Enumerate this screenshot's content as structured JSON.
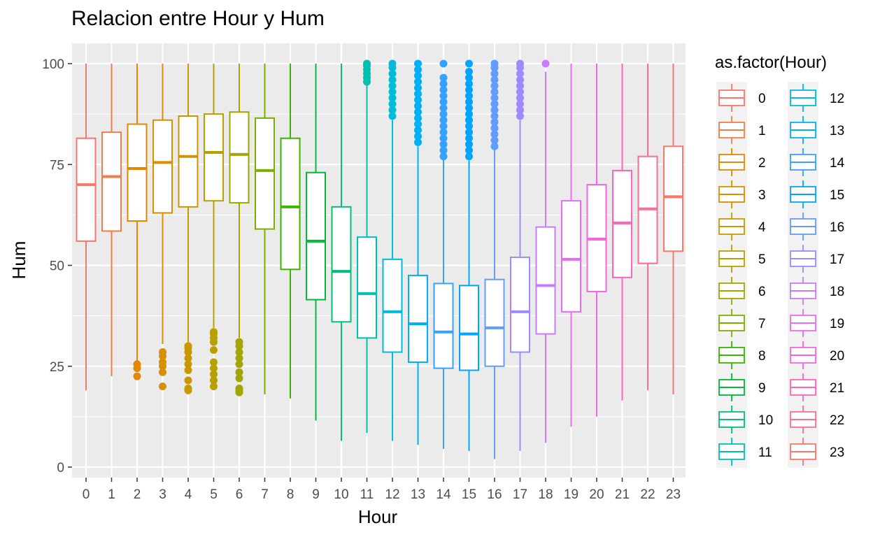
{
  "chart_data": {
    "type": "boxplot",
    "title": "Relacion entre Hour y Hum",
    "xlabel": "Hour",
    "ylabel": "Hum",
    "ylim": [
      0,
      100
    ],
    "yticks": [
      0,
      25,
      50,
      75,
      100
    ],
    "legend_title": "as.factor(Hour)",
    "legend_position": "right",
    "grid": true,
    "categories": [
      "0",
      "1",
      "2",
      "3",
      "4",
      "5",
      "6",
      "7",
      "8",
      "9",
      "10",
      "11",
      "12",
      "13",
      "14",
      "15",
      "16",
      "17",
      "18",
      "19",
      "20",
      "21",
      "22",
      "23"
    ],
    "colors": [
      "#F8766D",
      "#F07E4A",
      "#E58700",
      "#D69000",
      "#C99800",
      "#B8A000",
      "#A3A500",
      "#7CAE00",
      "#39B600",
      "#00BA38",
      "#00BF7D",
      "#00C0AF",
      "#00BCD8",
      "#00B0F6",
      "#35A2FF",
      "#00A5FF",
      "#619CFF",
      "#9F89FF",
      "#C77CFF",
      "#E76BF3",
      "#F564E3",
      "#FF62BC",
      "#FF6C91",
      "#F8766D"
    ],
    "boxes": [
      {
        "min": 19,
        "q1": 56,
        "median": 70,
        "q3": 81.5,
        "max": 100,
        "outliers": []
      },
      {
        "min": 22.5,
        "q1": 58.5,
        "median": 72,
        "q3": 83,
        "max": 100,
        "outliers": []
      },
      {
        "min": 26,
        "q1": 61,
        "median": 74,
        "q3": 85,
        "max": 100,
        "outliers": [
          22.5,
          24.5,
          25.5
        ]
      },
      {
        "min": 30.5,
        "q1": 63,
        "median": 75.5,
        "q3": 86,
        "max": 100,
        "outliers": [
          20,
          23.5,
          25,
          26,
          27.5,
          28.5
        ]
      },
      {
        "min": 31,
        "q1": 64.5,
        "median": 77,
        "q3": 87,
        "max": 100,
        "outliers": [
          19,
          19.5,
          21.5,
          24,
          25.5,
          27,
          28.5,
          29.5,
          30
        ]
      },
      {
        "min": 34.5,
        "q1": 66,
        "median": 78,
        "q3": 87.5,
        "max": 100,
        "outliers": [
          20,
          21.5,
          23,
          24.5,
          26,
          29,
          31,
          32,
          33,
          33.5
        ]
      },
      {
        "min": 32,
        "q1": 65.5,
        "median": 77.5,
        "q3": 88,
        "max": 100,
        "outliers": [
          18.5,
          19,
          19.5,
          22,
          23.5,
          25.5,
          27,
          28.5,
          30,
          31
        ]
      },
      {
        "min": 18,
        "q1": 59,
        "median": 73.5,
        "q3": 86.5,
        "max": 100,
        "outliers": []
      },
      {
        "min": 17,
        "q1": 49,
        "median": 64.5,
        "q3": 81.5,
        "max": 100,
        "outliers": []
      },
      {
        "min": 11.5,
        "q1": 41.5,
        "median": 56,
        "q3": 73,
        "max": 100,
        "outliers": []
      },
      {
        "min": 6.5,
        "q1": 36,
        "median": 48.5,
        "q3": 64.5,
        "max": 100,
        "outliers": []
      },
      {
        "min": 8.5,
        "q1": 32,
        "median": 43,
        "q3": 57,
        "max": 95,
        "outliers": [
          95.5,
          96.5,
          97.5,
          98.5,
          99.5,
          100
        ]
      },
      {
        "min": 6.5,
        "q1": 28.5,
        "median": 38.5,
        "q3": 51.5,
        "max": 86,
        "outliers": [
          87,
          88.5,
          90,
          91.5,
          93,
          94.5,
          96,
          97.5,
          99,
          100
        ]
      },
      {
        "min": 5.5,
        "q1": 26,
        "median": 35.5,
        "q3": 47.5,
        "max": 79.5,
        "outliers": [
          80.5,
          82,
          83.5,
          85,
          86.5,
          88,
          89.5,
          91,
          92.5,
          94,
          95.5,
          97,
          98.5,
          100
        ]
      },
      {
        "min": 4.5,
        "q1": 24.5,
        "median": 33.5,
        "q3": 45.5,
        "max": 76.5,
        "outliers": [
          77,
          78.5,
          80,
          81.5,
          83,
          84.5,
          86,
          87.5,
          89,
          90.5,
          92,
          93.5,
          95,
          96.5,
          100
        ]
      },
      {
        "min": 4,
        "q1": 24,
        "median": 33,
        "q3": 45,
        "max": 76,
        "outliers": [
          77,
          78.5,
          80,
          81.5,
          83,
          84.5,
          86,
          87.5,
          89,
          90.5,
          92,
          93.5,
          95,
          96.5,
          98,
          100
        ]
      },
      {
        "min": 2,
        "q1": 25,
        "median": 34.5,
        "q3": 46.5,
        "max": 79,
        "outliers": [
          79.5,
          81,
          82.5,
          84,
          85.5,
          87,
          88.5,
          90,
          91.5,
          93,
          94.5,
          96,
          97.5,
          99,
          100
        ]
      },
      {
        "min": 4,
        "q1": 28.5,
        "median": 38.5,
        "q3": 52,
        "max": 86,
        "outliers": [
          87,
          88.5,
          90,
          91.5,
          93,
          94.5,
          96,
          97.5,
          99,
          100
        ]
      },
      {
        "min": 6,
        "q1": 33,
        "median": 45,
        "q3": 59.5,
        "max": 98,
        "outliers": [
          100
        ]
      },
      {
        "min": 10,
        "q1": 38.5,
        "median": 51.5,
        "q3": 66,
        "max": 100,
        "outliers": []
      },
      {
        "min": 12.5,
        "q1": 43.5,
        "median": 56.5,
        "q3": 70,
        "max": 100,
        "outliers": []
      },
      {
        "min": 16.5,
        "q1": 47,
        "median": 60.5,
        "q3": 73.5,
        "max": 100,
        "outliers": []
      },
      {
        "min": 19,
        "q1": 50.5,
        "median": 64,
        "q3": 77,
        "max": 100,
        "outliers": []
      },
      {
        "min": 18,
        "q1": 53.5,
        "median": 67,
        "q3": 79.5,
        "max": 100,
        "outliers": []
      }
    ]
  }
}
